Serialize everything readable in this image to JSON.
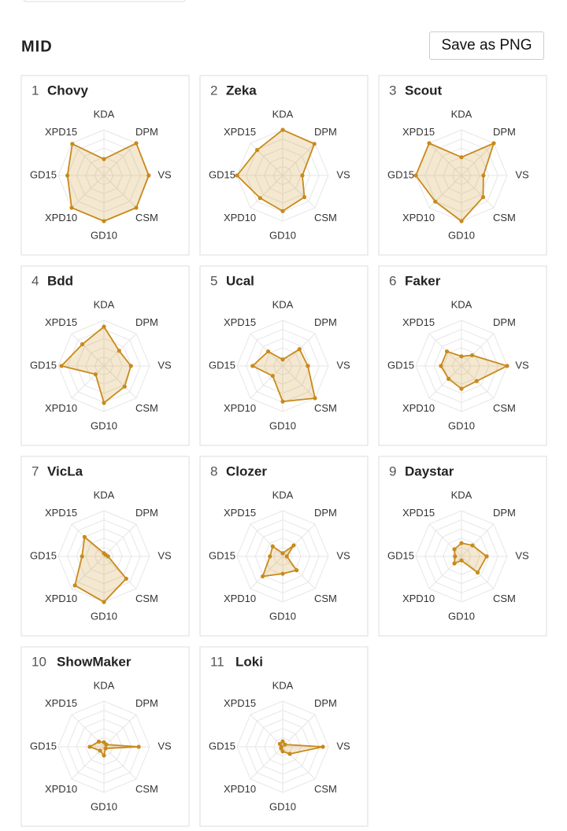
{
  "section_title": "MID",
  "button": "Save as PNG",
  "chart_data": [
    {
      "type": "radar",
      "rank": 1,
      "title": "Chovy",
      "axes": [
        "KDA",
        "DPM",
        "VS",
        "CSM",
        "GD10",
        "XPD10",
        "GD15",
        "XPD15"
      ],
      "values": [
        36,
        100,
        98,
        100,
        100,
        100,
        80,
        98
      ],
      "color": "#c98a1a",
      "rlim": [
        0,
        100
      ]
    },
    {
      "type": "radar",
      "rank": 2,
      "title": "Zeka",
      "axes": [
        "KDA",
        "DPM",
        "VS",
        "CSM",
        "GD10",
        "XPD10",
        "GD15",
        "XPD15"
      ],
      "values": [
        100,
        98,
        43,
        67,
        78,
        70,
        100,
        79
      ],
      "color": "#c98a1a",
      "rlim": [
        0,
        100
      ]
    },
    {
      "type": "radar",
      "rank": 3,
      "title": "Scout",
      "axes": [
        "KDA",
        "DPM",
        "VS",
        "CSM",
        "GD10",
        "XPD10",
        "GD15",
        "XPD15"
      ],
      "values": [
        40,
        100,
        48,
        67,
        100,
        81,
        100,
        100
      ],
      "color": "#c98a1a",
      "rlim": [
        0,
        100
      ]
    },
    {
      "type": "radar",
      "rank": 4,
      "title": "Bdd",
      "axes": [
        "KDA",
        "DPM",
        "VS",
        "CSM",
        "GD10",
        "XPD10",
        "GD15",
        "XPD15"
      ],
      "values": [
        86,
        47,
        59,
        64,
        81,
        26,
        93,
        67
      ],
      "color": "#c98a1a",
      "rlim": [
        0,
        100
      ]
    },
    {
      "type": "radar",
      "rank": 5,
      "title": "Ucal",
      "axes": [
        "KDA",
        "DPM",
        "VS",
        "CSM",
        "GD10",
        "XPD10",
        "GD15",
        "XPD15"
      ],
      "values": [
        14,
        52,
        55,
        100,
        78,
        31,
        66,
        45
      ],
      "color": "#c98a1a",
      "rlim": [
        0,
        100
      ]
    },
    {
      "type": "radar",
      "rank": 6,
      "title": "Faker",
      "axes": [
        "KDA",
        "DPM",
        "VS",
        "CSM",
        "GD10",
        "XPD10",
        "GD15",
        "XPD15"
      ],
      "values": [
        21,
        33,
        100,
        47,
        50,
        40,
        45,
        45
      ],
      "color": "#c98a1a",
      "rlim": [
        0,
        100
      ]
    },
    {
      "type": "radar",
      "rank": 7,
      "title": "VicLa",
      "axes": [
        "KDA",
        "DPM",
        "VS",
        "CSM",
        "GD10",
        "XPD10",
        "GD15",
        "XPD15"
      ],
      "values": [
        7,
        5,
        9,
        69,
        100,
        90,
        48,
        60
      ],
      "color": "#c98a1a",
      "rlim": [
        0,
        100
      ]
    },
    {
      "type": "radar",
      "rank": 8,
      "title": "Clozer",
      "axes": [
        "KDA",
        "DPM",
        "VS",
        "CSM",
        "GD10",
        "XPD10",
        "GD15",
        "XPD15"
      ],
      "values": [
        7,
        34,
        9,
        43,
        38,
        62,
        28,
        31
      ],
      "color": "#c98a1a",
      "rlim": [
        0,
        100
      ]
    },
    {
      "type": "radar",
      "rank": 9,
      "title": "Daystar",
      "axes": [
        "KDA",
        "DPM",
        "VS",
        "CSM",
        "GD10",
        "XPD10",
        "GD15",
        "XPD15"
      ],
      "values": [
        29,
        34,
        55,
        50,
        9,
        22,
        14,
        22
      ],
      "color": "#c98a1a",
      "rlim": [
        0,
        100
      ]
    },
    {
      "type": "radar",
      "rank": 10,
      "title": "ShowMaker",
      "axes": [
        "KDA",
        "DPM",
        "VS",
        "CSM",
        "GD10",
        "XPD10",
        "GD15",
        "XPD15"
      ],
      "values": [
        10,
        7,
        76,
        5,
        19,
        12,
        31,
        16
      ],
      "color": "#c98a1a",
      "rlim": [
        0,
        100
      ]
    },
    {
      "type": "radar",
      "rank": 11,
      "title": "Loki",
      "axes": [
        "KDA",
        "DPM",
        "VS",
        "CSM",
        "GD10",
        "XPD10",
        "GD15",
        "XPD15"
      ],
      "values": [
        12,
        7,
        88,
        22,
        10,
        5,
        3,
        9
      ],
      "color": "#c98a1a",
      "rlim": [
        0,
        100
      ]
    }
  ]
}
